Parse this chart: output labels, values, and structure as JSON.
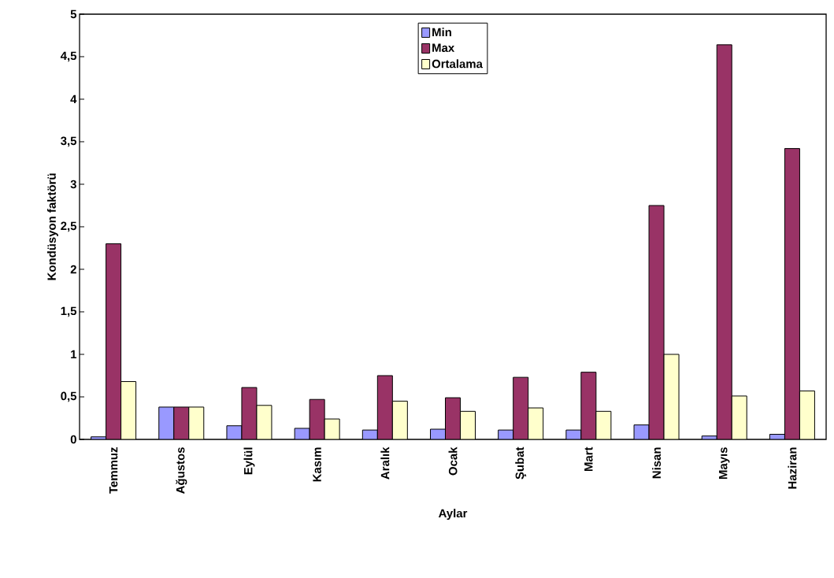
{
  "chart_data": {
    "type": "bar",
    "xlabel": "Aylar",
    "ylabel": "Kondüsyon faktörü",
    "categories": [
      "Temmuz",
      "Ağustos",
      "Eylül",
      "Kasım",
      "Aralık",
      "Ocak",
      "Şubat",
      "Mart",
      "Nisan",
      "Mayıs",
      "Haziran"
    ],
    "series": [
      {
        "name": "Min",
        "color": "#9999ff",
        "values": [
          0.03,
          0.38,
          0.16,
          0.13,
          0.11,
          0.12,
          0.11,
          0.11,
          0.17,
          0.04,
          0.06
        ]
      },
      {
        "name": "Max",
        "color": "#993366",
        "values": [
          2.3,
          0.38,
          0.61,
          0.47,
          0.75,
          0.49,
          0.73,
          0.79,
          2.75,
          4.64,
          3.42
        ]
      },
      {
        "name": "Ortalama",
        "color": "#ffffcc",
        "values": [
          0.68,
          0.38,
          0.4,
          0.24,
          0.45,
          0.33,
          0.37,
          0.33,
          1.0,
          0.51,
          0.57
        ]
      }
    ],
    "ylim": [
      0,
      5
    ],
    "yticks": [
      0,
      {
        "value": 0.5,
        "label": "0,5"
      },
      1,
      {
        "value": 1.5,
        "label": "1,5"
      },
      2,
      {
        "value": 2.5,
        "label": "2,5"
      },
      3,
      {
        "value": 3.5,
        "label": "3,5"
      },
      4,
      {
        "value": 4.5,
        "label": "4,5"
      },
      5
    ],
    "legend": "top",
    "grid": false
  }
}
